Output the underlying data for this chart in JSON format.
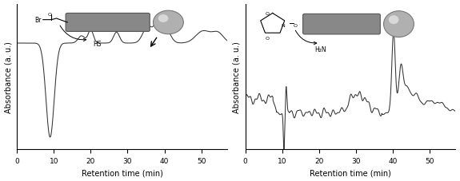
{
  "xlim": [
    0,
    57
  ],
  "xlabel": "Retention time (min)",
  "ylabel": "Absorbance (a. u.)",
  "xticks": [
    0,
    10,
    20,
    30,
    40,
    50
  ],
  "background_color": "#ffffff",
  "line_color": "#333333",
  "figsize": [
    5.75,
    2.28
  ],
  "dpi": 100
}
